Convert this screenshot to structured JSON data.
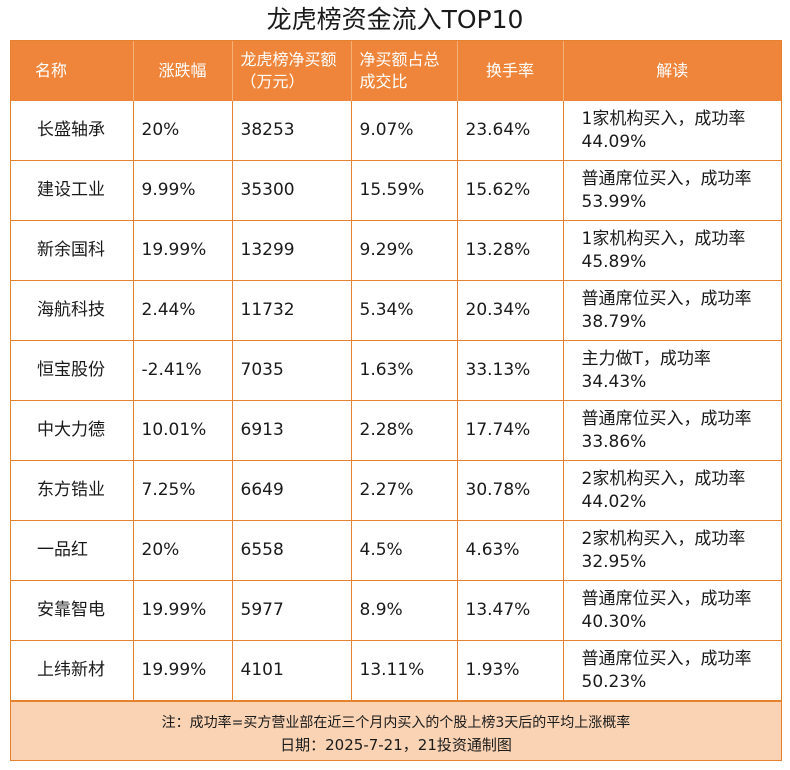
{
  "title": "龙虎榜资金流入TOP10",
  "headers": {
    "name": "名称",
    "change": "涨跌幅",
    "net_buy": "龙虎榜净买额（万元）",
    "ratio": "净买额占总成交比",
    "turnover": "换手率",
    "note": "解读"
  },
  "rows": [
    {
      "name": "长盛轴承",
      "change": "20%",
      "net_buy": "38253",
      "ratio": "9.07%",
      "turnover": "23.64%",
      "note": "1家机构买入，成功率44.09%"
    },
    {
      "name": "建设工业",
      "change": "9.99%",
      "net_buy": "35300",
      "ratio": "15.59%",
      "turnover": "15.62%",
      "note": "普通席位买入，成功率53.99%"
    },
    {
      "name": "新余国科",
      "change": "19.99%",
      "net_buy": "13299",
      "ratio": "9.29%",
      "turnover": "13.28%",
      "note": "1家机构买入，成功率45.89%"
    },
    {
      "name": "海航科技",
      "change": "2.44%",
      "net_buy": "11732",
      "ratio": "5.34%",
      "turnover": "20.34%",
      "note": "普通席位买入，成功率38.79%"
    },
    {
      "name": "恒宝股份",
      "change": "-2.41%",
      "net_buy": "7035",
      "ratio": "1.63%",
      "turnover": "33.13%",
      "note": "主力做T，成功率34.43%"
    },
    {
      "name": "中大力德",
      "change": "10.01%",
      "net_buy": "6913",
      "ratio": "2.28%",
      "turnover": "17.74%",
      "note": "普通席位买入，成功率33.86%"
    },
    {
      "name": "东方锆业",
      "change": "7.25%",
      "net_buy": "6649",
      "ratio": "2.27%",
      "turnover": "30.78%",
      "note": "2家机构买入，成功率44.02%"
    },
    {
      "name": "一品红",
      "change": "20%",
      "net_buy": "6558",
      "ratio": "4.5%",
      "turnover": "4.63%",
      "note": "2家机构买入，成功率32.95%"
    },
    {
      "name": "安靠智电",
      "change": "19.99%",
      "net_buy": "5977",
      "ratio": "8.9%",
      "turnover": "13.47%",
      "note": "普通席位买入，成功率40.30%"
    },
    {
      "name": "上纬新材",
      "change": "19.99%",
      "net_buy": "4101",
      "ratio": "13.11%",
      "turnover": "1.93%",
      "note": "普通席位买入，成功率50.23%"
    }
  ],
  "footer": {
    "note": "注：成功率=买方营业部在近三个月内买入的个股上榜3天后的平均上涨概率",
    "date": "日期：2025-7-21，21投资通制图"
  }
}
